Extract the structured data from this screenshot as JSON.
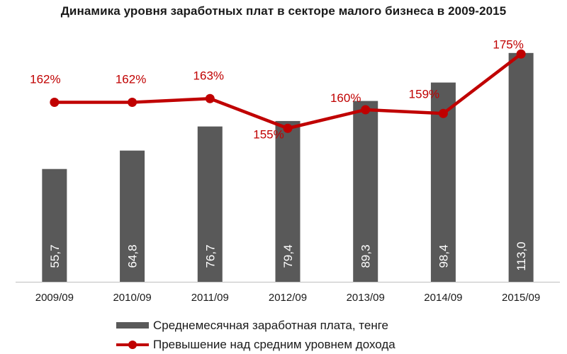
{
  "chart_data": {
    "type": "bar",
    "title": "Динамика уровня заработных плат в секторе малого бизнеса в 2009-2015",
    "categories": [
      "2009/09",
      "2010/09",
      "2011/09",
      "2012/09",
      "2013/09",
      "2014/09",
      "2015/09"
    ],
    "series": [
      {
        "name": "Среднемесячная заработная плата, тенге",
        "type": "bar",
        "color": "#595959",
        "values": [
          55.7,
          64.8,
          76.7,
          79.4,
          89.3,
          98.4,
          113.0
        ],
        "labels": [
          "55,7",
          "64,8",
          "76,7",
          "79,4",
          "89,3",
          "98,4",
          "113,0"
        ]
      },
      {
        "name": "Превышение над средним уровнем дохода",
        "type": "line",
        "color": "#c00000",
        "values": [
          162,
          162,
          163,
          155,
          160,
          159,
          175
        ],
        "labels": [
          "162%",
          "162%",
          "163%",
          "155%",
          "160%",
          "159%",
          "175%"
        ]
      }
    ],
    "bar_axis_range": [
      0,
      120
    ],
    "line_axis_range": [
      120,
      180
    ],
    "grid": false,
    "legend_position": "bottom"
  }
}
